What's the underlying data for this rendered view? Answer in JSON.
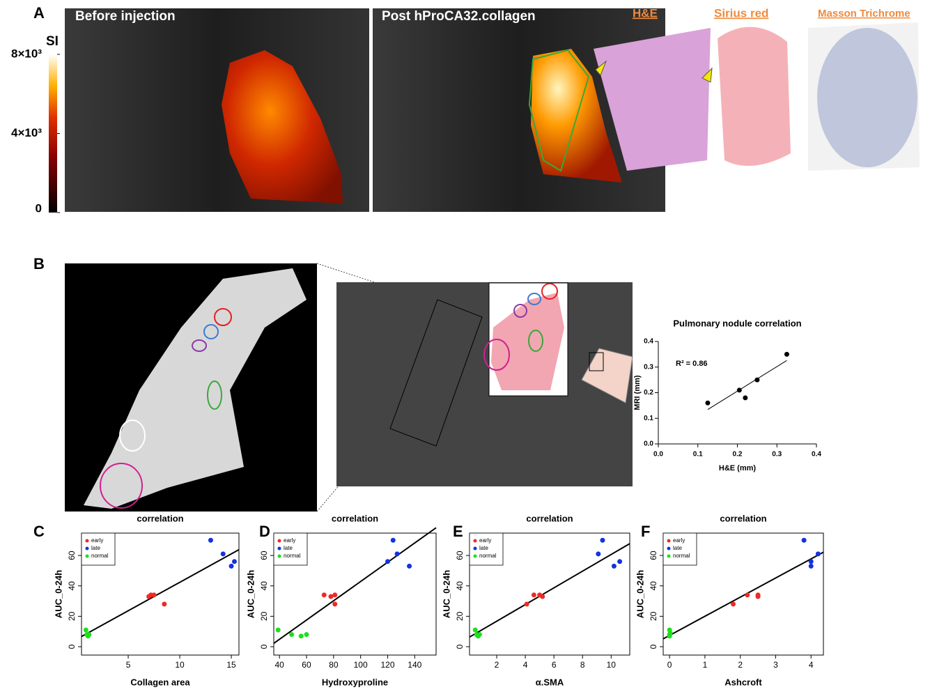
{
  "figure": {
    "panels": [
      "A",
      "B",
      "C",
      "D",
      "E",
      "F"
    ],
    "images": {
      "before": "Before injection",
      "post": "Post hProCA32.collagen",
      "he": "H&E",
      "sirius": "Sirius red",
      "masson": "Masson Trichrome"
    },
    "colorbar": {
      "title": "SI",
      "lim": [
        0,
        8000
      ],
      "ticks": [
        0,
        {
          "value": 4000,
          "label": "4×10³"
        },
        {
          "value": 8000,
          "label": "8×10³"
        }
      ]
    }
  },
  "chart_data": [
    {
      "type": "scatter",
      "title": "Pulmonary nodule correlation",
      "x_label": "H&E (mm)",
      "y_label": "MRI (mm)",
      "x": [
        0.125,
        0.205,
        0.22,
        0.25,
        0.325
      ],
      "values": [
        0.16,
        0.21,
        0.18,
        0.25,
        0.35
      ],
      "color": "#000000",
      "annotation": "R² = 0.86",
      "fit": true,
      "frame": false,
      "xlim": [
        0,
        0.4
      ],
      "ylim": [
        0,
        0.4
      ],
      "xticks": [
        {
          "value": 0,
          "label": "0.0"
        },
        0.1,
        0.2,
        0.3,
        0.4
      ],
      "yticks": [
        {
          "value": 0,
          "label": "0.0"
        },
        0.1,
        0.2,
        0.3,
        0.4
      ]
    },
    {
      "type": "scatter",
      "title": "correlation",
      "x_label": "Collagen area",
      "y_label": "AUC_0-24h",
      "fit": true,
      "frame": true,
      "legend": "upper left",
      "xlim": [
        0.47,
        15.74
      ],
      "ylim": [
        -5.5,
        74.7
      ],
      "xticks": [
        5,
        10,
        15
      ],
      "yticks": [
        0,
        20,
        40,
        60
      ],
      "series": [
        {
          "name": "early",
          "color": "#ee2a24",
          "x": [
            7,
            7.2,
            7.5,
            8.5
          ],
          "values": [
            33,
            34,
            34,
            28
          ]
        },
        {
          "name": "late",
          "color": "#1432e0",
          "x": [
            13,
            14.2,
            15,
            15.3
          ],
          "values": [
            70,
            61,
            53,
            56
          ]
        },
        {
          "name": "normal",
          "color": "#1de01d",
          "x": [
            0.9,
            1.0,
            1.1,
            1.2
          ],
          "values": [
            11,
            8,
            7,
            8
          ]
        }
      ]
    },
    {
      "type": "scatter",
      "title": "correlation",
      "x_label": "Hydroxyproline",
      "y_label": "AUC_0-24h",
      "fit": true,
      "frame": true,
      "legend": "upper left",
      "xlim": [
        35.8,
        155.8
      ],
      "ylim": [
        -5.5,
        74.7
      ],
      "xticks": [
        40,
        60,
        80,
        100,
        120,
        140
      ],
      "yticks": [
        0,
        20,
        40,
        60
      ],
      "series": [
        {
          "name": "early",
          "color": "#ee2a24",
          "x": [
            73,
            78,
            81,
            81
          ],
          "values": [
            34,
            33,
            34,
            28
          ]
        },
        {
          "name": "late",
          "color": "#1432e0",
          "x": [
            120,
            124,
            127,
            136
          ],
          "values": [
            56,
            70,
            61,
            53
          ]
        },
        {
          "name": "normal",
          "color": "#1de01d",
          "x": [
            39,
            49,
            56,
            60
          ],
          "values": [
            11,
            8,
            7,
            8
          ]
        }
      ]
    },
    {
      "type": "scatter",
      "title": "correlation",
      "x_label": "α.SMA",
      "y_label": "AUC_0-24h",
      "fit": true,
      "frame": true,
      "legend": "upper left",
      "xlim": [
        0.1,
        11.3
      ],
      "ylim": [
        -5.5,
        74.7
      ],
      "xticks": [
        2,
        4,
        6,
        8,
        10
      ],
      "yticks": [
        0,
        20,
        40,
        60
      ],
      "series": [
        {
          "name": "early",
          "color": "#ee2a24",
          "x": [
            4.1,
            4.6,
            5.0,
            5.2
          ],
          "values": [
            28,
            34,
            34,
            33
          ]
        },
        {
          "name": "late",
          "color": "#1432e0",
          "x": [
            9.1,
            9.4,
            10.2,
            10.6
          ],
          "values": [
            61,
            70,
            53,
            56
          ]
        },
        {
          "name": "normal",
          "color": "#1de01d",
          "x": [
            0.5,
            0.6,
            0.7,
            0.8
          ],
          "values": [
            11,
            8,
            7,
            8
          ]
        }
      ]
    },
    {
      "type": "scatter",
      "title": "correlation",
      "x_label": "Ashcroft",
      "y_label": "AUC_0-24h",
      "fit": true,
      "frame": true,
      "legend": "upper left",
      "xlim": [
        -0.18,
        4.35
      ],
      "ylim": [
        -5.5,
        74.7
      ],
      "xticks": [
        0,
        1,
        2,
        3,
        4
      ],
      "yticks": [
        0,
        20,
        40,
        60
      ],
      "series": [
        {
          "name": "early",
          "color": "#ee2a24",
          "x": [
            1.8,
            2.2,
            2.5,
            2.5
          ],
          "values": [
            28,
            34,
            33,
            34
          ]
        },
        {
          "name": "late",
          "color": "#1432e0",
          "x": [
            3.8,
            4.0,
            4.0,
            4.2
          ],
          "values": [
            70,
            56,
            53,
            61
          ]
        },
        {
          "name": "normal",
          "color": "#1de01d",
          "x": [
            0,
            0,
            0,
            0.02
          ],
          "values": [
            11,
            8,
            7,
            9
          ]
        }
      ]
    }
  ]
}
